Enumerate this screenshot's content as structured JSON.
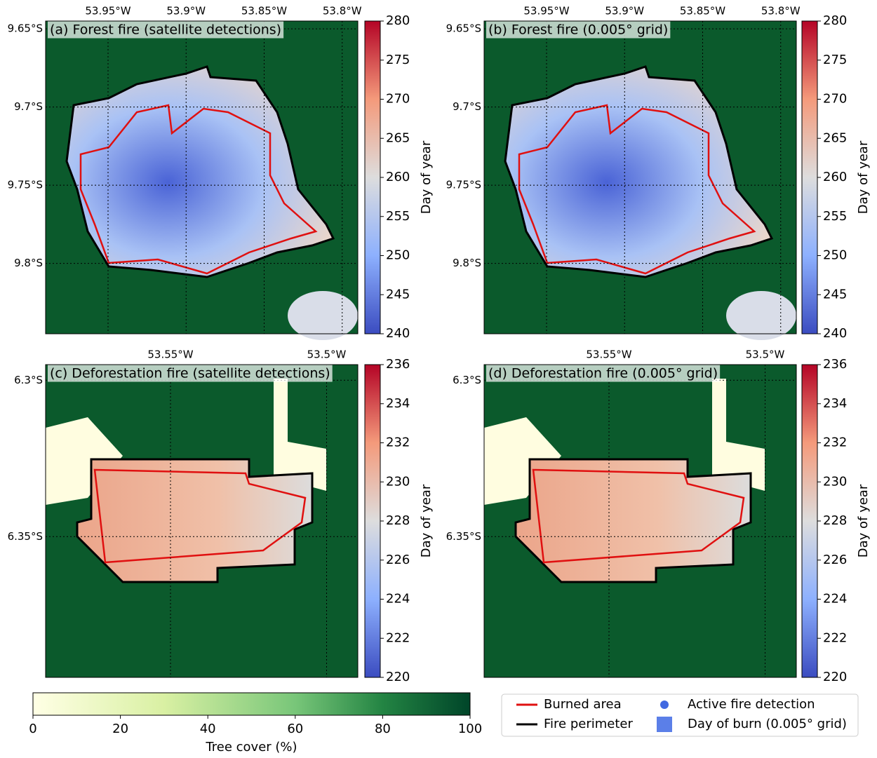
{
  "panels": [
    {
      "title": "(a) Forest fire (satellite detections)",
      "xlim": [
        -53.99,
        -53.79
      ],
      "ylim": [
        -9.845,
        -9.645
      ],
      "xticks": [
        {
          "value": -53.95,
          "label": "53.95°W"
        },
        {
          "value": -53.9,
          "label": "53.9°W"
        },
        {
          "value": -53.85,
          "label": "53.85°W"
        },
        {
          "value": -53.8,
          "label": "53.8°W"
        }
      ],
      "yticks": [
        {
          "value": -9.65,
          "label": "9.65°S"
        },
        {
          "value": -9.7,
          "label": "9.7°S"
        },
        {
          "value": -9.75,
          "label": "9.75°S"
        },
        {
          "value": -9.8,
          "label": "9.8°S"
        }
      ],
      "colorbar": {
        "label": "Day of year",
        "lim": [
          240,
          280
        ],
        "ticks": [
          240,
          245,
          250,
          255,
          260,
          265,
          270,
          275,
          280
        ]
      }
    },
    {
      "title": "(b) Forest fire (0.005° grid)",
      "xlim": [
        -53.99,
        -53.79
      ],
      "ylim": [
        -9.845,
        -9.645
      ],
      "xticks": [
        {
          "value": -53.95,
          "label": "53.95°W"
        },
        {
          "value": -53.9,
          "label": "53.9°W"
        },
        {
          "value": -53.85,
          "label": "53.85°W"
        },
        {
          "value": -53.8,
          "label": "53.8°W"
        }
      ],
      "yticks": [
        {
          "value": -9.65,
          "label": "9.65°S"
        },
        {
          "value": -9.7,
          "label": "9.7°S"
        },
        {
          "value": -9.75,
          "label": "9.75°S"
        },
        {
          "value": -9.8,
          "label": "9.8°S"
        }
      ],
      "colorbar": {
        "label": "Day of year",
        "lim": [
          240,
          280
        ],
        "ticks": [
          240,
          245,
          250,
          255,
          260,
          265,
          270,
          275,
          280
        ]
      }
    },
    {
      "title": "(c) Deforestation fire (satellite detections)",
      "xlim": [
        -53.59,
        -53.49
      ],
      "ylim": [
        -6.395,
        -6.295
      ],
      "xticks": [
        {
          "value": -53.55,
          "label": "53.55°W"
        },
        {
          "value": -53.5,
          "label": "53.5°W"
        }
      ],
      "yticks": [
        {
          "value": -6.3,
          "label": "6.3°S"
        },
        {
          "value": -6.35,
          "label": "6.35°S"
        }
      ],
      "colorbar": {
        "label": "Day of year",
        "lim": [
          220,
          236
        ],
        "ticks": [
          220,
          222,
          224,
          226,
          228,
          230,
          232,
          234,
          236
        ]
      }
    },
    {
      "title": "(d) Deforestation fire (0.005° grid)",
      "xlim": [
        -53.59,
        -53.49
      ],
      "ylim": [
        -6.395,
        -6.295
      ],
      "xticks": [
        {
          "value": -53.55,
          "label": "53.55°W"
        },
        {
          "value": -53.5,
          "label": "53.5°W"
        }
      ],
      "yticks": [
        {
          "value": -6.3,
          "label": "6.3°S"
        },
        {
          "value": -6.35,
          "label": "6.35°S"
        }
      ],
      "colorbar": {
        "label": "Day of year",
        "lim": [
          220,
          236
        ],
        "ticks": [
          220,
          222,
          224,
          226,
          228,
          230,
          232,
          234,
          236
        ]
      }
    }
  ],
  "tree_cover_colorbar": {
    "label": "Tree cover (%)",
    "lim": [
      0,
      100
    ],
    "ticks": [
      0,
      20,
      40,
      60,
      80,
      100
    ]
  },
  "legend": [
    "Burned area",
    "Fire perimeter",
    "Active fire detection",
    "Day of burn (0.005° grid)"
  ]
}
